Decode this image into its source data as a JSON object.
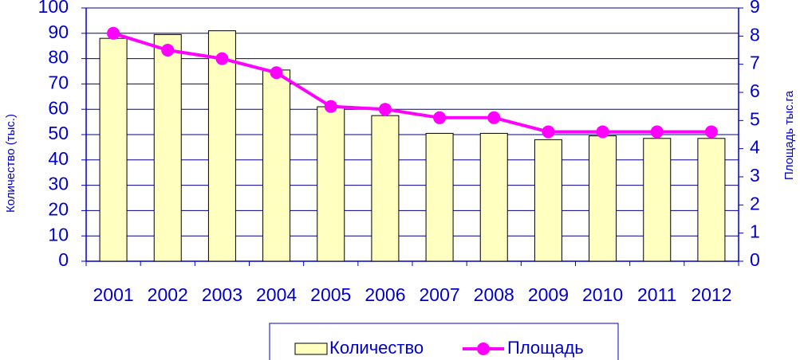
{
  "chart_data": {
    "type": "bar",
    "categories": [
      "2001",
      "2002",
      "2003",
      "2004",
      "2005",
      "2006",
      "2007",
      "2008",
      "2009",
      "2010",
      "2011",
      "2012"
    ],
    "series": [
      {
        "name": "Количество",
        "type": "bar",
        "color": "#ffffc0",
        "values": [
          88,
          89.5,
          91,
          75.5,
          61,
          57.5,
          50.5,
          50.5,
          48,
          49.5,
          48.5,
          48.5
        ]
      },
      {
        "name": "Площадь",
        "type": "line",
        "axis": "y2",
        "color": "#ff00ff",
        "values": [
          8.1,
          7.5,
          7.2,
          6.7,
          5.5,
          5.4,
          5.1,
          5.1,
          4.6,
          4.6,
          4.6,
          4.6
        ]
      }
    ],
    "ylabel": "Количество (тыс.)",
    "y2label": "Площадь тыс.га",
    "ylim": [
      0,
      100
    ],
    "yticks": [
      0,
      10,
      20,
      30,
      40,
      50,
      60,
      70,
      80,
      90,
      100
    ],
    "y2lim": [
      0,
      9
    ],
    "y2ticks": [
      0,
      1,
      2,
      3,
      4,
      5,
      6,
      7,
      8,
      9
    ],
    "grid": true,
    "legend": "bottom"
  }
}
